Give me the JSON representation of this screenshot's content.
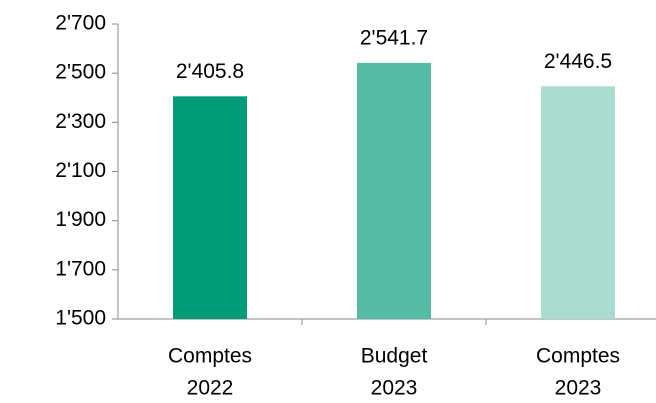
{
  "chart_data": {
    "type": "bar",
    "categories": [
      [
        "Comptes",
        "2022"
      ],
      [
        "Budget",
        "2023"
      ],
      [
        "Comptes",
        "2023"
      ]
    ],
    "values": [
      2405.8,
      2541.7,
      2446.5
    ],
    "value_labels": [
      "2'405.8",
      "2'541.7",
      "2'446.5"
    ],
    "colors": [
      "#009b77",
      "#55bba5",
      "#a8dccf"
    ],
    "ylim": [
      1500,
      2700
    ],
    "yticks": [
      {
        "value": 1500,
        "label": "1'500"
      },
      {
        "value": 1700,
        "label": "1'700"
      },
      {
        "value": 1900,
        "label": "1'900"
      },
      {
        "value": 2100,
        "label": "2'100"
      },
      {
        "value": 2300,
        "label": "2'300"
      },
      {
        "value": 2500,
        "label": "2'500"
      },
      {
        "value": 2700,
        "label": "2'700"
      }
    ],
    "grid": false
  }
}
